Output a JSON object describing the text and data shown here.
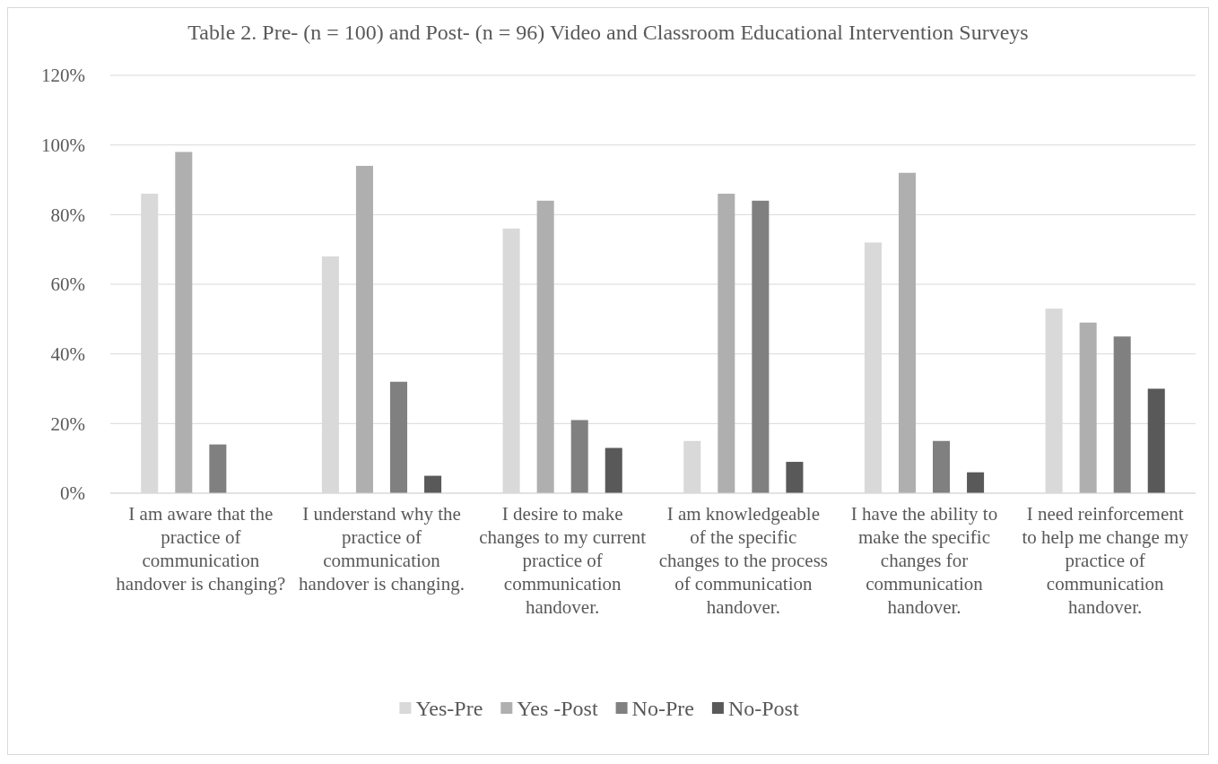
{
  "chart_data": {
    "type": "bar",
    "title": "Table 2. Pre- (n = 100) and Post- (n = 96) Video and Classroom Educational Intervention Surveys",
    "categories": [
      "I am aware that the practice of communication handover is changing?",
      "I understand why the practice of communication handover is changing.",
      "I desire to make changes to my current practice of communication handover.",
      "I am knowledgeable of the specific changes to the process of communication handover.",
      "I have the ability to make the specific changes for communication handover.",
      "I need reinforcement to help me change my practice of communication handover."
    ],
    "series": [
      {
        "name": "Yes-Pre",
        "color": "#d9d9d9",
        "values": [
          86,
          68,
          76,
          15,
          72,
          53
        ]
      },
      {
        "name": "Yes -Post",
        "color": "#afafaf",
        "values": [
          98,
          94,
          84,
          86,
          92,
          49
        ]
      },
      {
        "name": "No-Pre",
        "color": "#808080",
        "values": [
          14,
          32,
          21,
          84,
          15,
          45
        ]
      },
      {
        "name": "No-Post",
        "color": "#595959",
        "values": [
          0,
          5,
          13,
          9,
          6,
          30
        ]
      }
    ],
    "ylim": [
      0,
      120
    ],
    "yticks": [
      {
        "value": 0,
        "label": "0%"
      },
      {
        "value": 20,
        "label": "20%"
      },
      {
        "value": 40,
        "label": "40%"
      },
      {
        "value": 60,
        "label": "60%"
      },
      {
        "value": 80,
        "label": "80%"
      },
      {
        "value": 100,
        "label": "100%"
      },
      {
        "value": 120,
        "label": "120%"
      }
    ],
    "grid": "y",
    "legend": "bottom"
  }
}
